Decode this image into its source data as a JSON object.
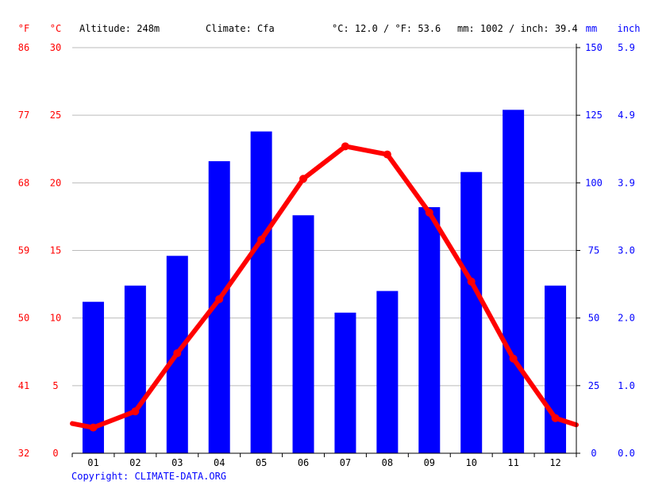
{
  "header": {
    "unit_f": "°F",
    "unit_c": "°C",
    "altitude": "Altitude: 248m",
    "climate": "Climate: Cfa",
    "avg_temp": "°C: 12.0 / °F: 53.6",
    "avg_precip": "mm: 1002 / inch: 39.4",
    "unit_mm": "mm",
    "unit_inch": "inch"
  },
  "footer": {
    "copyright": "Copyright: CLIMATE-DATA.ORG"
  },
  "colors": {
    "temperature": "#ff0000",
    "precipitation": "#0000ff",
    "grid": "#bbbbbb",
    "axis": "#000000"
  },
  "chart_data": {
    "type": "bar",
    "categories": [
      "01",
      "02",
      "03",
      "04",
      "05",
      "06",
      "07",
      "08",
      "09",
      "10",
      "11",
      "12"
    ],
    "series": [
      {
        "type": "bar",
        "axis": "right",
        "values": [
          56,
          62,
          73,
          108,
          119,
          88,
          52,
          60,
          91,
          104,
          127,
          62
        ]
      },
      {
        "type": "line",
        "axis": "left",
        "values": [
          1.9,
          3.1,
          7.4,
          11.4,
          15.8,
          20.3,
          22.7,
          22.1,
          17.8,
          12.7,
          7.0,
          2.6
        ]
      }
    ],
    "edge_values": {
      "start": 2.2,
      "end": 2.1
    },
    "y_left_celsius": {
      "ticks": [
        "0",
        "5",
        "10",
        "15",
        "20",
        "25",
        "30"
      ],
      "ylim": [
        0,
        30
      ]
    },
    "y_left_fahrenheit": {
      "ticks": [
        "32",
        "41",
        "50",
        "59",
        "68",
        "77",
        "86"
      ]
    },
    "y_right_mm": {
      "ticks": [
        "0",
        "25",
        "50",
        "75",
        "100",
        "125",
        "150"
      ],
      "ylim": [
        0,
        150
      ]
    },
    "y_right_inch": {
      "ticks": [
        "0.0",
        "1.0",
        "2.0",
        "3.0",
        "3.9",
        "4.9",
        "5.9"
      ]
    },
    "grid": true
  }
}
